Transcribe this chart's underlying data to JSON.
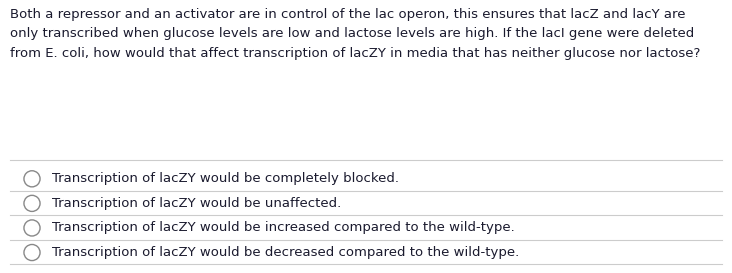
{
  "background_color": "#ffffff",
  "question_color": "#1a1a2e",
  "option_color": "#1a1a2e",
  "question": "Both a repressor and an activator are in control of the lac operon, this ensures that lacZ and lacY are\nonly transcribed when glucose levels are low and lactose levels are high. If the lacI gene were deleted\nfrom E. coli, how would that affect transcription of lacZY in media that has neither glucose nor lactose?",
  "options": [
    "Transcription of lacZY would be completely blocked.",
    "Transcription of lacZY would be unaffected.",
    "Transcription of lacZY would be increased compared to the wild-type.",
    "Transcription of lacZY would be decreased compared to the wild-type."
  ],
  "divider_color": "#cccccc",
  "circle_color": "#888888",
  "fig_width": 7.32,
  "fig_height": 2.73,
  "dpi": 100,
  "question_fontsize": 9.5,
  "option_fontsize": 9.5
}
